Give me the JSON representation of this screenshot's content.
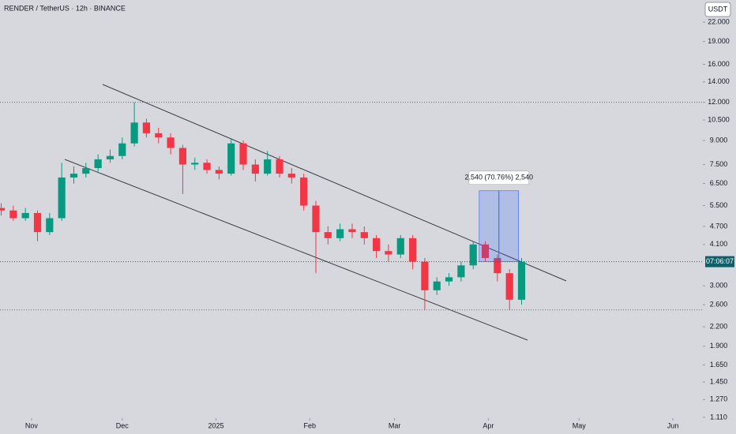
{
  "chart_data": {
    "type": "candlestick",
    "title": "RENDER / TetherUS · 12h · BINANCE",
    "log_scale": true,
    "grid": false,
    "up_color": "#089981",
    "down_color": "#f23645",
    "x": [
      -10,
      -6,
      -2,
      2,
      6,
      10,
      14,
      18,
      22,
      26,
      30,
      34,
      38,
      42,
      46,
      50,
      54,
      58,
      62,
      66,
      70,
      74,
      78,
      82,
      86,
      90,
      94,
      98,
      102,
      106,
      110,
      114,
      118,
      122,
      126,
      130,
      134,
      138,
      142,
      146,
      150,
      154,
      158,
      162
    ],
    "open": [
      5.4,
      5.3,
      5.0,
      5.2,
      4.5,
      5.0,
      6.8,
      7.0,
      7.3,
      7.8,
      8.0,
      8.8,
      10.3,
      9.5,
      9.2,
      8.5,
      7.5,
      7.6,
      7.2,
      7.0,
      8.8,
      7.5,
      7.0,
      7.8,
      7.0,
      6.8,
      5.5,
      4.5,
      4.3,
      4.6,
      4.5,
      4.3,
      3.9,
      3.8,
      4.3,
      3.6,
      2.9,
      3.1,
      3.2,
      3.5,
      4.1,
      3.7,
      3.3,
      2.7
    ],
    "high": [
      5.6,
      5.5,
      5.4,
      5.3,
      5.2,
      7.6,
      7.4,
      7.6,
      8.1,
      8.4,
      9.2,
      12.0,
      10.6,
      9.9,
      9.5,
      8.7,
      7.9,
      7.8,
      7.4,
      9.1,
      9.0,
      7.8,
      8.3,
      8.0,
      7.3,
      7.0,
      5.7,
      4.7,
      4.8,
      4.8,
      4.7,
      4.4,
      4.1,
      4.4,
      4.4,
      3.7,
      3.2,
      3.3,
      3.6,
      4.2,
      4.2,
      3.8,
      3.4,
      3.7
    ],
    "low": [
      5.1,
      4.9,
      4.9,
      4.2,
      4.4,
      4.9,
      6.5,
      6.8,
      7.1,
      7.6,
      7.8,
      8.6,
      9.2,
      8.8,
      8.1,
      6.0,
      7.2,
      7.0,
      6.7,
      6.9,
      7.2,
      6.6,
      6.9,
      6.8,
      6.5,
      5.3,
      3.3,
      4.1,
      4.2,
      4.3,
      4.1,
      3.7,
      3.6,
      3.7,
      3.4,
      2.5,
      2.8,
      3.0,
      3.1,
      3.4,
      3.6,
      3.1,
      2.5,
      2.6
    ],
    "close": [
      5.3,
      5.0,
      5.2,
      4.5,
      5.0,
      6.8,
      7.0,
      7.3,
      7.8,
      8.0,
      8.8,
      10.3,
      9.5,
      9.2,
      8.5,
      7.5,
      7.6,
      7.2,
      7.0,
      8.8,
      7.5,
      7.0,
      7.8,
      7.0,
      6.8,
      5.5,
      4.5,
      4.3,
      4.6,
      4.5,
      4.3,
      3.9,
      3.8,
      4.3,
      3.6,
      2.9,
      3.1,
      3.2,
      3.5,
      4.1,
      3.7,
      3.3,
      2.7,
      3.6
    ],
    "xlim": [
      -10.4,
      221.9
    ],
    "xticks": [
      {
        "value": 0,
        "label": "Nov"
      },
      {
        "value": 30,
        "label": "Dec"
      },
      {
        "value": 61,
        "label": "2025"
      },
      {
        "value": 92,
        "label": "Feb"
      },
      {
        "value": 120,
        "label": "Mar"
      },
      {
        "value": 151,
        "label": "Apr"
      },
      {
        "value": 181,
        "label": "May"
      },
      {
        "value": 212,
        "label": "Jun"
      }
    ],
    "ylim": [
      1.103,
      26.0
    ],
    "yticks": [
      {
        "value": 22,
        "label": "22.000"
      },
      {
        "value": 19,
        "label": "19.000"
      },
      {
        "value": 16,
        "label": "16.000"
      },
      {
        "value": 14,
        "label": "14.000"
      },
      {
        "value": 12,
        "label": "12.000"
      },
      {
        "value": 10.5,
        "label": "10.500"
      },
      {
        "value": 9,
        "label": "9.000"
      },
      {
        "value": 7.5,
        "label": "7.500"
      },
      {
        "value": 6.5,
        "label": "6.500"
      },
      {
        "value": 5.5,
        "label": "5.500"
      },
      {
        "value": 4.7,
        "label": "4.700"
      },
      {
        "value": 4.1,
        "label": "4.100"
      },
      {
        "value": 3,
        "label": "3.000"
      },
      {
        "value": 2.6,
        "label": "2.600"
      },
      {
        "value": 2.2,
        "label": "2.200"
      },
      {
        "value": 1.9,
        "label": "1.900"
      },
      {
        "value": 1.65,
        "label": "1.650"
      },
      {
        "value": 1.45,
        "label": "1.450"
      },
      {
        "value": 1.27,
        "label": "1.270"
      },
      {
        "value": 1.11,
        "label": "1.110"
      }
    ],
    "levels": [
      12.0,
      2.5
    ],
    "measure": {
      "label": "2.540 (70.76%) 2,540",
      "x_from": 148,
      "x_to": 161,
      "from": 3.6,
      "to": 6.15
    },
    "countdown": "07:06:07",
    "currency": "USDT"
  }
}
